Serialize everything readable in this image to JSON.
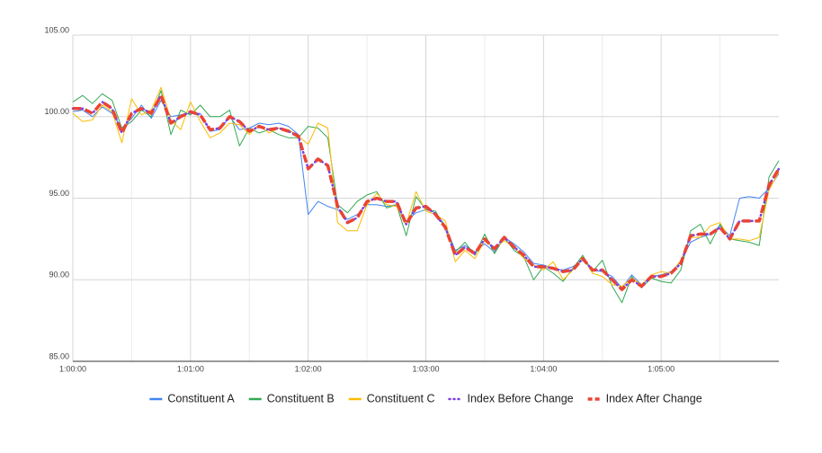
{
  "chart_data": {
    "type": "line",
    "x": [
      0,
      5,
      10,
      15,
      20,
      25,
      30,
      35,
      40,
      45,
      50,
      55,
      60,
      65,
      70,
      75,
      80,
      85,
      90,
      95,
      100,
      105,
      110,
      115,
      120,
      125,
      130,
      135,
      140,
      145,
      150,
      155,
      160,
      165,
      170,
      175,
      180,
      185,
      190,
      195,
      200,
      205,
      210,
      215,
      220,
      225,
      230,
      235,
      240,
      245,
      250,
      255,
      260,
      265,
      270,
      275,
      280,
      285,
      290,
      295,
      300,
      305,
      310,
      315,
      320,
      325,
      330,
      335,
      340,
      345,
      350,
      355,
      360
    ],
    "series": [
      {
        "name": "Constituent A",
        "color": "#4285f4",
        "style": "solid",
        "values": [
          100.3,
          100.4,
          100.0,
          100.6,
          100.2,
          99.3,
          99.9,
          100.7,
          99.9,
          101.0,
          100.0,
          100.1,
          100.2,
          100.2,
          99.1,
          99.2,
          100.0,
          99.2,
          99.3,
          99.6,
          99.5,
          99.6,
          99.4,
          98.9,
          94.0,
          94.8,
          94.5,
          94.3,
          93.7,
          94.0,
          94.6,
          94.6,
          94.5,
          94.6,
          93.6,
          94.1,
          94.3,
          94.1,
          93.3,
          91.8,
          92.1,
          91.7,
          92.2,
          91.7,
          92.6,
          92.2,
          91.7,
          91.0,
          90.9,
          90.7,
          90.6,
          90.8,
          91.2,
          90.6,
          90.5,
          90.2,
          89.5,
          90.3,
          89.7,
          90.2,
          90.3,
          90.5,
          91.1,
          92.3,
          92.6,
          92.8,
          93.3,
          92.7,
          95.0,
          95.1,
          95.0,
          95.6,
          96.5
        ]
      },
      {
        "name": "Constituent B",
        "color": "#34a853",
        "style": "solid",
        "values": [
          100.9,
          101.3,
          100.8,
          101.4,
          101.0,
          99.3,
          99.7,
          100.4,
          100.0,
          101.6,
          98.9,
          100.4,
          100.1,
          100.7,
          100.0,
          100.0,
          100.4,
          98.2,
          99.3,
          99.0,
          99.2,
          98.9,
          98.7,
          98.7,
          99.4,
          99.3,
          98.7,
          94.6,
          94.1,
          94.8,
          95.2,
          95.4,
          94.4,
          94.6,
          92.7,
          95.1,
          94.3,
          94.2,
          93.1,
          91.7,
          92.3,
          91.5,
          92.8,
          91.6,
          92.6,
          91.8,
          91.4,
          90.0,
          90.8,
          90.4,
          89.9,
          90.7,
          91.5,
          90.5,
          91.2,
          89.6,
          88.6,
          90.2,
          89.5,
          90.1,
          89.9,
          89.8,
          90.6,
          93.0,
          93.4,
          92.2,
          93.4,
          92.5,
          92.4,
          92.3,
          92.1,
          96.3,
          97.3
        ]
      },
      {
        "name": "Constituent C",
        "color": "#fbbc04",
        "style": "solid",
        "values": [
          100.2,
          99.7,
          99.8,
          100.7,
          100.3,
          98.4,
          101.1,
          100.1,
          100.4,
          101.8,
          99.8,
          99.2,
          100.9,
          99.7,
          98.7,
          99.0,
          99.6,
          99.5,
          98.9,
          99.5,
          99.0,
          99.3,
          99.2,
          98.8,
          98.3,
          99.6,
          99.3,
          93.5,
          93.0,
          93.0,
          94.6,
          95.3,
          94.6,
          94.5,
          93.4,
          95.4,
          94.2,
          94.0,
          93.6,
          91.1,
          91.8,
          91.3,
          92.4,
          91.9,
          92.4,
          92.0,
          91.3,
          90.9,
          90.6,
          91.1,
          90.0,
          90.6,
          91.4,
          90.4,
          90.2,
          89.7,
          89.6,
          90.1,
          89.7,
          90.3,
          90.5,
          90.4,
          91.2,
          92.6,
          92.6,
          93.3,
          93.5,
          92.5,
          92.5,
          92.4,
          92.6,
          95.5,
          96.6
        ]
      },
      {
        "name": "Index Before Change",
        "color": "#7b3fe4",
        "style": "dotted",
        "values": [
          100.5,
          100.5,
          100.2,
          100.9,
          100.5,
          99.0,
          100.2,
          100.5,
          100.2,
          101.3,
          99.6,
          100.0,
          100.3,
          100.1,
          99.2,
          99.3,
          100.0,
          99.7,
          99.1,
          99.4,
          99.2,
          99.3,
          99.1,
          98.8,
          96.8,
          97.4,
          97.0,
          94.5,
          93.5,
          93.8,
          94.8,
          95.0,
          94.8,
          94.8,
          93.4,
          94.4,
          94.5,
          94.0,
          93.2,
          91.5,
          92.0,
          91.6,
          92.5,
          91.9,
          92.6,
          92.0,
          91.5,
          90.8,
          90.8,
          90.7,
          90.5,
          90.6,
          91.3,
          90.6,
          90.6,
          90.0,
          89.4,
          90.0,
          89.6,
          90.2,
          90.2,
          90.4,
          91.0,
          92.7,
          92.8,
          92.8,
          93.2,
          92.5,
          93.6,
          93.6,
          93.6,
          95.8,
          96.8
        ]
      },
      {
        "name": "Index After Change",
        "color": "#ea4335",
        "style": "dashed",
        "values": [
          100.5,
          100.5,
          100.2,
          100.9,
          100.5,
          99.0,
          100.2,
          100.5,
          100.2,
          101.3,
          99.6,
          100.0,
          100.3,
          100.1,
          99.2,
          99.3,
          100.0,
          99.7,
          99.1,
          99.4,
          99.2,
          99.3,
          99.1,
          98.8,
          96.8,
          97.4,
          97.0,
          94.5,
          93.5,
          93.8,
          94.8,
          95.0,
          94.8,
          94.8,
          93.4,
          94.4,
          94.5,
          94.0,
          93.2,
          91.5,
          92.0,
          91.6,
          92.5,
          91.9,
          92.6,
          92.0,
          91.5,
          90.8,
          90.8,
          90.7,
          90.5,
          90.6,
          91.3,
          90.6,
          90.6,
          90.0,
          89.4,
          90.0,
          89.6,
          90.2,
          90.2,
          90.4,
          91.0,
          92.7,
          92.8,
          92.8,
          93.2,
          92.5,
          93.6,
          93.6,
          93.6,
          95.8,
          96.8
        ]
      }
    ],
    "xlim": [
      0,
      360
    ],
    "xticks": [
      {
        "value": 0,
        "label": "1:00:00"
      },
      {
        "value": 60,
        "label": "1:01:00"
      },
      {
        "value": 120,
        "label": "1:02:00"
      },
      {
        "value": 180,
        "label": "1:03:00"
      },
      {
        "value": 240,
        "label": "1:04:00"
      },
      {
        "value": 300,
        "label": "1:05:00"
      }
    ],
    "x_minor_ticks": [
      30,
      90,
      150,
      210,
      270,
      330
    ],
    "ylim": [
      85,
      105
    ],
    "yticks": [
      {
        "value": 85,
        "label": "85.00"
      },
      {
        "value": 90,
        "label": "90.00"
      },
      {
        "value": 95,
        "label": "95.00"
      },
      {
        "value": 100,
        "label": "100.00"
      },
      {
        "value": 105,
        "label": "105.00"
      }
    ],
    "grid": true,
    "legend": "bottom"
  }
}
